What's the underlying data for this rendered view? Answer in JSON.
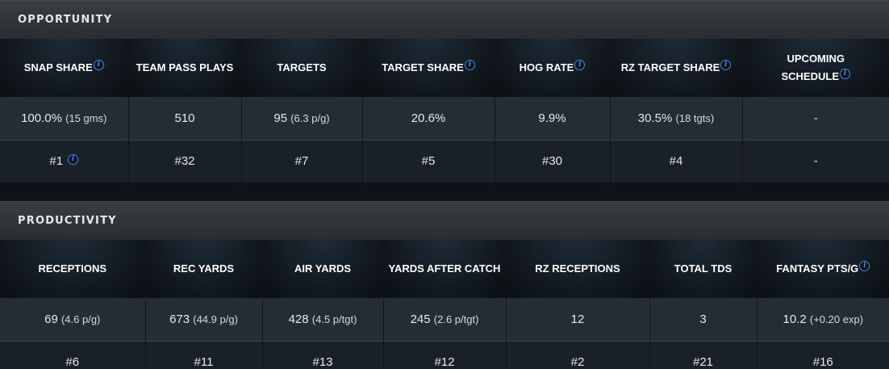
{
  "opportunity": {
    "title": "OPPORTUNITY",
    "columns": [
      {
        "label": "SNAP SHARE",
        "info": true
      },
      {
        "label": "TEAM PASS PLAYS",
        "info": false
      },
      {
        "label": "TARGETS",
        "info": false
      },
      {
        "label": "TARGET SHARE",
        "info": true
      },
      {
        "label": "HOG RATE",
        "info": true
      },
      {
        "label": "RZ TARGET SHARE",
        "info": true
      },
      {
        "label": "UPCOMING SCHEDULE",
        "label_line1": "UPCOMING",
        "label_line2": "SCHEDULE",
        "info": true
      }
    ],
    "values": [
      {
        "main": "100.0%",
        "sub": "(15 gms)"
      },
      {
        "main": "510",
        "sub": ""
      },
      {
        "main": "95",
        "sub": "(6.3 p/g)"
      },
      {
        "main": "20.6%",
        "sub": ""
      },
      {
        "main": "9.9%",
        "sub": ""
      },
      {
        "main": "30.5%",
        "sub": "(18 tgts)"
      },
      {
        "main": "-",
        "sub": ""
      }
    ],
    "ranks": [
      "#1",
      "#32",
      "#7",
      "#5",
      "#30",
      "#4",
      "-"
    ]
  },
  "productivity": {
    "title": "PRODUCTIVITY",
    "columns": [
      {
        "label": "RECEPTIONS",
        "info": false
      },
      {
        "label": "REC YARDS",
        "info": false
      },
      {
        "label": "AIR YARDS",
        "info": false
      },
      {
        "label": "YARDS AFTER CATCH",
        "info": false
      },
      {
        "label": "RZ RECEPTIONS",
        "info": false
      },
      {
        "label": "TOTAL TDS",
        "info": false
      },
      {
        "label": "FANTASY PTS/G",
        "info": true
      }
    ],
    "values": [
      {
        "main": "69",
        "sub": "(4.6 p/g)"
      },
      {
        "main": "673",
        "sub": "(44.9 p/g)"
      },
      {
        "main": "428",
        "sub": "(4.5 p/tgt)"
      },
      {
        "main": "245",
        "sub": "(2.6 p/tgt)"
      },
      {
        "main": "12",
        "sub": ""
      },
      {
        "main": "3",
        "sub": ""
      },
      {
        "main": "10.2",
        "sub": "(+0.20 exp)"
      }
    ],
    "ranks": [
      "#6",
      "#11",
      "#13",
      "#12",
      "#2",
      "#21",
      "#16"
    ]
  },
  "icons": {
    "info": "info-icon",
    "info_glyph": "i"
  },
  "colors": {
    "info": "#3d8be8",
    "header": "#2e3135",
    "value_row": "#242c35",
    "rank_row": "#1a2027"
  }
}
